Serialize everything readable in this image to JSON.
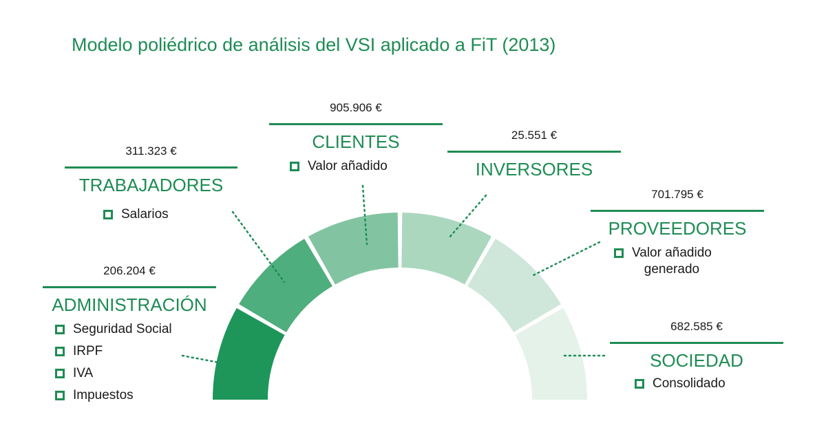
{
  "title": "Modelo poliédrico de análisis del VSI aplicado a FiT (2013)",
  "colors": {
    "accent": "#1e8c54",
    "segments": [
      "#1e965a",
      "#4fae7d",
      "#82c4a1",
      "#acd7bf",
      "#cfe7da",
      "#e4f2ea"
    ]
  },
  "stakeholders": {
    "administracion": {
      "value": "206.204 €",
      "name": "ADMINISTRACIÓN",
      "items": [
        "Seguridad Social",
        "IRPF",
        "IVA",
        "Impuestos"
      ]
    },
    "trabajadores": {
      "value": "311.323 €",
      "name": "TRABAJADORES",
      "items": [
        "Salarios"
      ]
    },
    "clientes": {
      "value": "905.906 €",
      "name": "CLIENTES",
      "items": [
        "Valor añadido"
      ]
    },
    "inversores": {
      "value": "25.551 €",
      "name": "INVERSORES",
      "items": []
    },
    "proveedores": {
      "value": "701.795 €",
      "name": "PROVEEDORES",
      "items": [
        "Valor añadido\ngenerado"
      ]
    },
    "sociedad": {
      "value": "682.585 €",
      "name": "SOCIEDAD",
      "items": [
        "Consolidado"
      ]
    }
  }
}
